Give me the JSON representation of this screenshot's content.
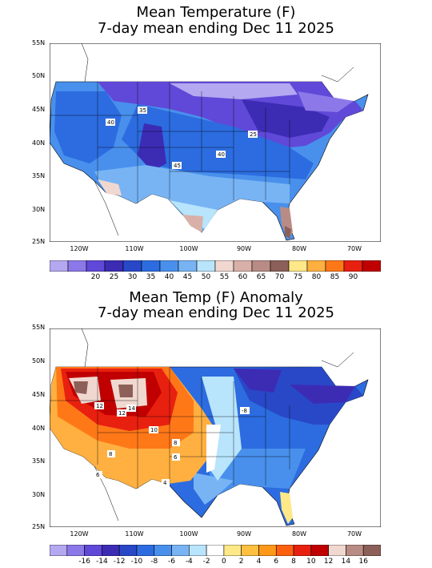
{
  "top": {
    "title_line1": "Mean Temperature (F)",
    "title_line2": "7-day mean ending Dec 11 2025",
    "lat_labels": [
      "55N",
      "50N",
      "45N",
      "40N",
      "35N",
      "30N",
      "25N"
    ],
    "lon_labels": [
      "120W",
      "110W",
      "100W",
      "90W",
      "80W",
      "70W"
    ],
    "contour_labels": [
      "35",
      "40",
      "25",
      "40",
      "45"
    ],
    "colorbar_labels": [
      "20",
      "25",
      "30",
      "35",
      "40",
      "45",
      "50",
      "55",
      "60",
      "65",
      "70",
      "75",
      "80",
      "85",
      "90"
    ],
    "colorbar_colors": [
      "#b4a8f0",
      "#8c78e8",
      "#6048d8",
      "#3c2cb4",
      "#2848c8",
      "#2c6ce0",
      "#4890ec",
      "#78b4f4",
      "#b8e4fc",
      "#f0d8d0",
      "#d8b0a8",
      "#b88c84",
      "#8c6058",
      "#ffe888",
      "#ffb040",
      "#ff7818",
      "#e82010",
      "#c00000"
    ]
  },
  "bottom": {
    "title_line1": "Mean Temp (F) Anomaly",
    "title_line2": "7-day mean ending Dec 11 2025",
    "lat_labels": [
      "55N",
      "50N",
      "45N",
      "40N",
      "35N",
      "30N",
      "25N"
    ],
    "lon_labels": [
      "120W",
      "110W",
      "100W",
      "90W",
      "80W",
      "70W"
    ],
    "contour_labels": [
      "12",
      "12",
      "14",
      "10",
      "8",
      "6",
      "8",
      "6",
      "4",
      "-8"
    ],
    "colorbar_labels": [
      "-16",
      "-14",
      "-12",
      "-10",
      "-8",
      "-6",
      "-4",
      "-2",
      "0",
      "2",
      "4",
      "6",
      "8",
      "10",
      "12",
      "14",
      "16"
    ],
    "colorbar_colors": [
      "#b4a8f0",
      "#8c78e8",
      "#6048d8",
      "#3c2cb4",
      "#2848c8",
      "#2c6ce0",
      "#4890ec",
      "#78b4f4",
      "#b8e4fc",
      "#ffffff",
      "#ffe888",
      "#ffc040",
      "#ff9818",
      "#ff6010",
      "#e82010",
      "#c00000",
      "#f0d8d0",
      "#b88c84",
      "#8c6058"
    ]
  }
}
